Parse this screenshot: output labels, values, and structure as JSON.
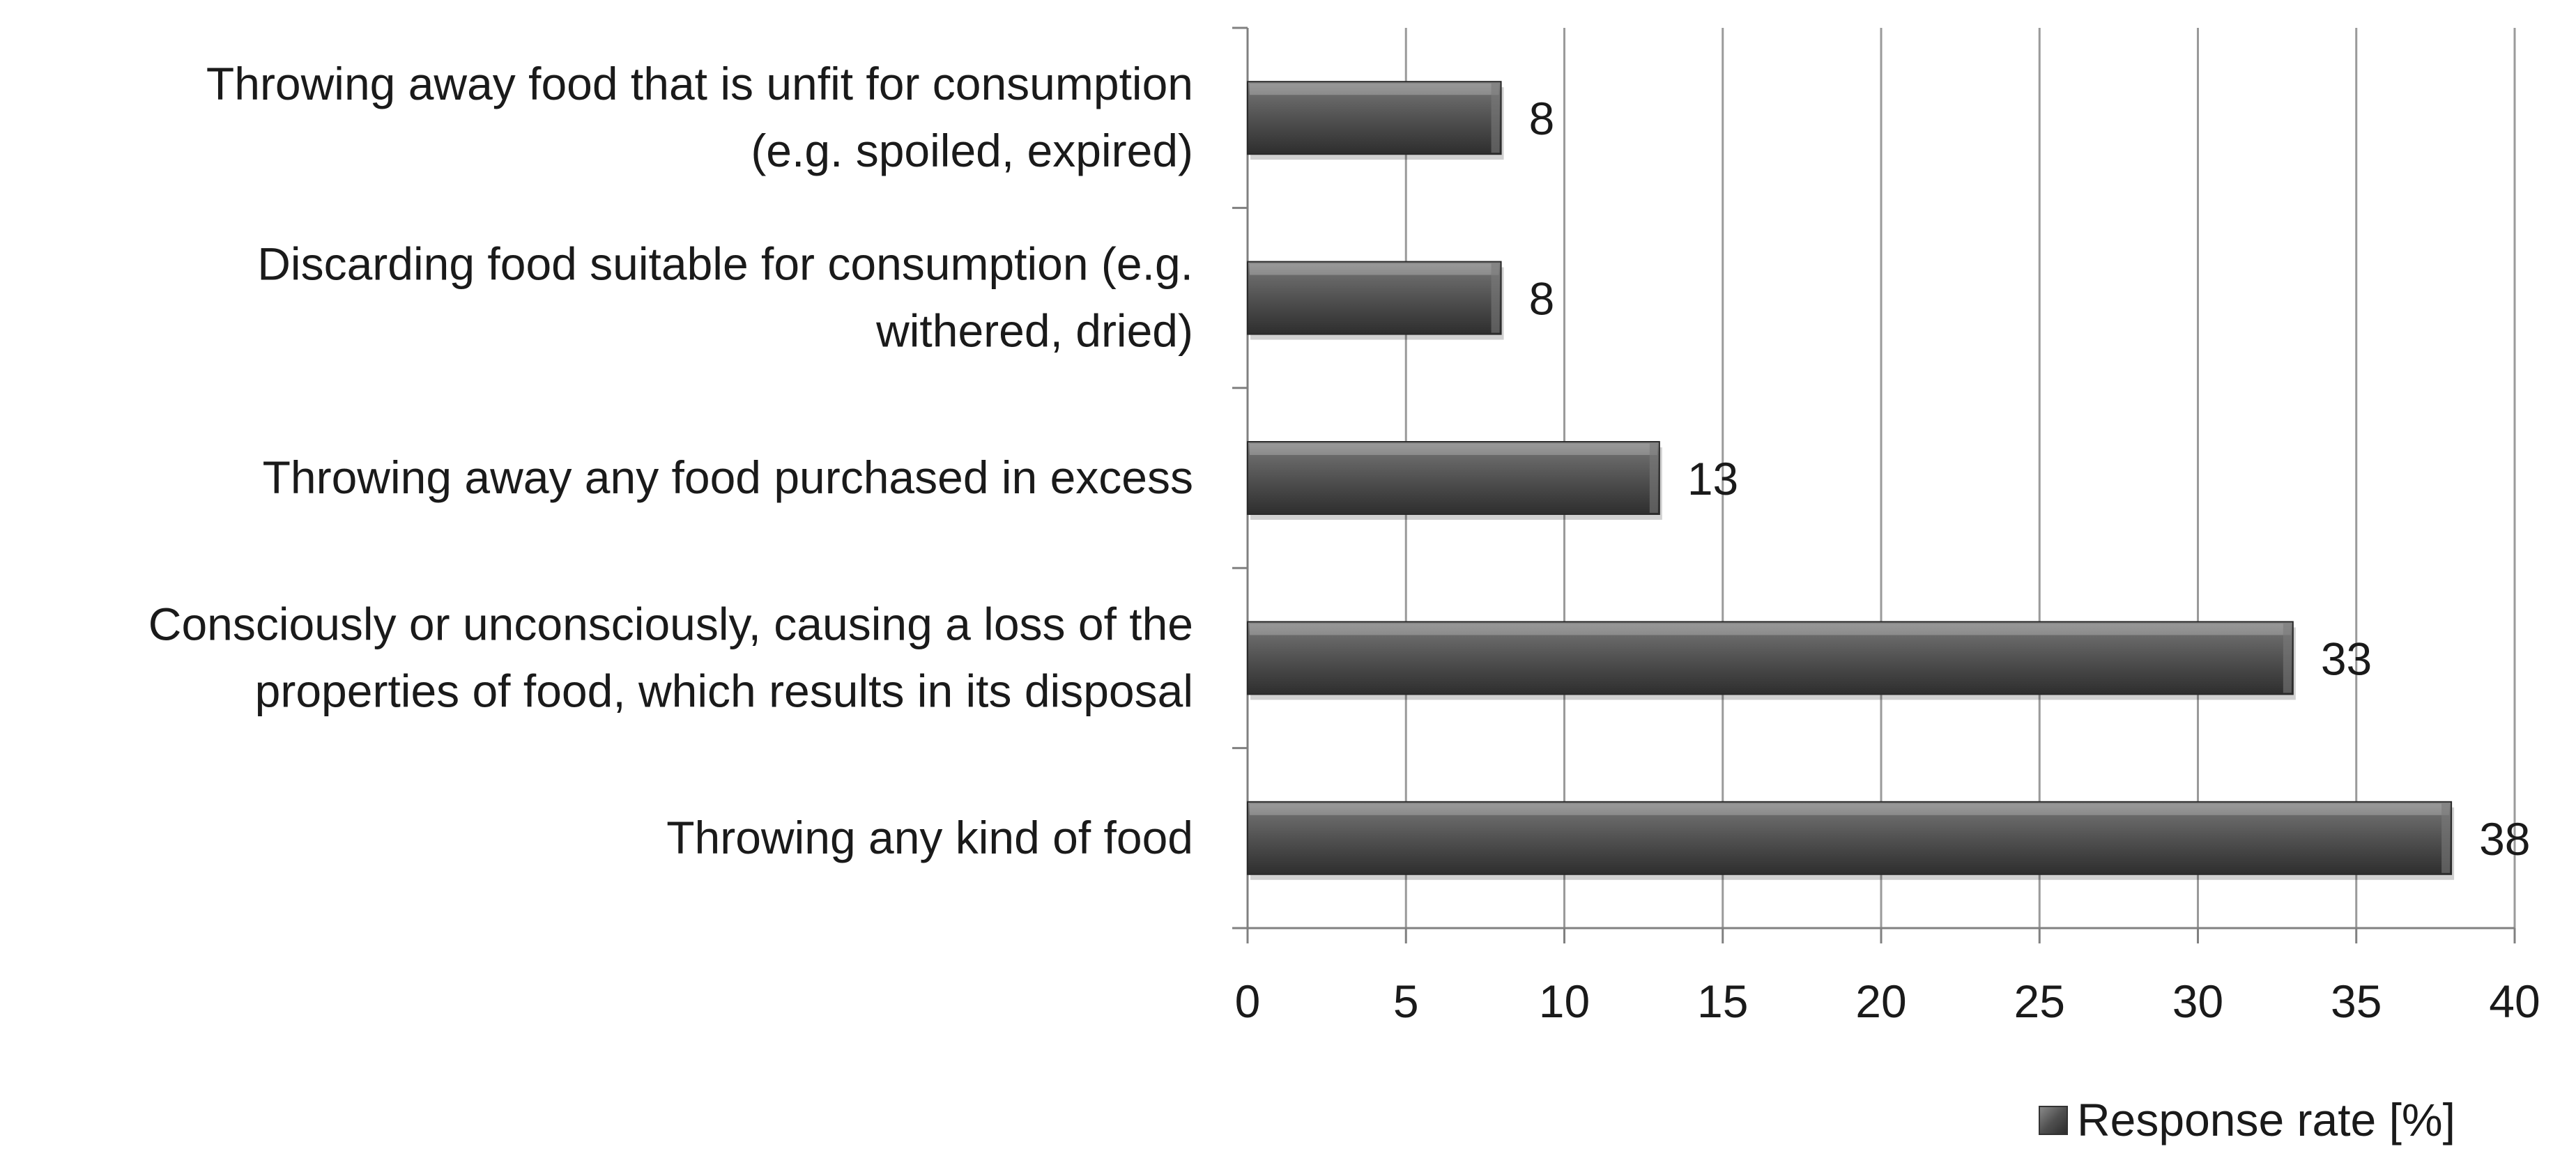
{
  "chart_data": {
    "type": "bar",
    "orientation": "horizontal",
    "categories": [
      [
        "Throwing away food that is unfit for consumption",
        "(e.g. spoiled, expired)"
      ],
      [
        "Discarding food suitable for consumption (e.g.",
        "withered, dried)"
      ],
      [
        "Throwing away any food purchased in excess"
      ],
      [
        "Consciously or unconsciously, causing a loss of the",
        "properties of food, which results in its disposal"
      ],
      [
        "Throwing any kind of food"
      ]
    ],
    "series": [
      {
        "name": "Response rate [%]",
        "values": [
          8,
          8,
          13,
          33,
          38
        ]
      }
    ],
    "data_labels": [
      "8",
      "8",
      "13",
      "33",
      "38"
    ],
    "xlim": [
      0,
      40
    ],
    "x_ticks": [
      0,
      5,
      10,
      15,
      20,
      25,
      30,
      35,
      40
    ],
    "grid": true,
    "legend_position": "bottom-right",
    "title": "",
    "xlabel": "",
    "ylabel": "",
    "colors": {
      "bar": "#5a5a5a",
      "bar_light": "#8a8a8a",
      "bar_dark": "#303030",
      "grid": "#9a9a9a",
      "axis": "#808080"
    }
  }
}
